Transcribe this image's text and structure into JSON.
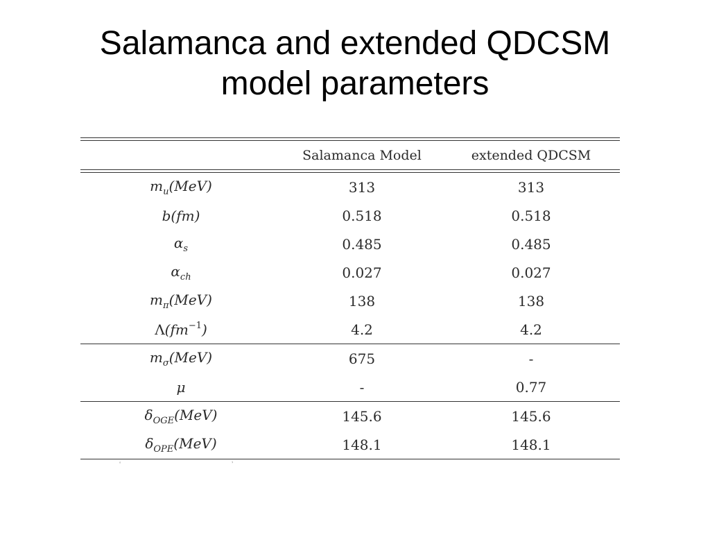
{
  "title": {
    "line1": "Salamanca and extended QDCSM",
    "line2": "model parameters"
  },
  "table": {
    "headers": [
      "",
      "Salamanca Model",
      "extended QDCSM"
    ],
    "rows": [
      {
        "param": {
          "base": "m",
          "sub": "u",
          "sup": "",
          "unit": "(MeV)"
        },
        "salamanca": "313",
        "qdcsm": "313"
      },
      {
        "param": {
          "base": "b",
          "sub": "",
          "sup": "",
          "unit": "(fm)"
        },
        "salamanca": "0.518",
        "qdcsm": "0.518"
      },
      {
        "param": {
          "base": "α",
          "sub": "s",
          "sup": "",
          "unit": ""
        },
        "salamanca": "0.485",
        "qdcsm": "0.485"
      },
      {
        "param": {
          "base": "α",
          "sub": "ch",
          "sup": "",
          "unit": ""
        },
        "salamanca": "0.027",
        "qdcsm": "0.027"
      },
      {
        "param": {
          "base": "m",
          "sub": "π",
          "sup": "",
          "unit": "(MeV)"
        },
        "salamanca": "138",
        "qdcsm": "138"
      },
      {
        "param": {
          "base": "Λ",
          "sub": "",
          "sup": "−1",
          "unit_pre": "(fm",
          "unit_post": ")"
        },
        "salamanca": "4.2",
        "qdcsm": "4.2"
      },
      {
        "param": {
          "base": "m",
          "sub": "σ",
          "sup": "",
          "unit": "(MeV)"
        },
        "salamanca": "675",
        "qdcsm": "-"
      },
      {
        "param": {
          "base": "μ",
          "sub": "",
          "sup": "",
          "unit": ""
        },
        "salamanca": "-",
        "qdcsm": "0.77"
      },
      {
        "param": {
          "base": "δ",
          "sub": "OGE",
          "sup": "",
          "unit": "(MeV)"
        },
        "salamanca": "145.6",
        "qdcsm": "145.6"
      },
      {
        "param": {
          "base": "δ",
          "sub": "OPE",
          "sup": "",
          "unit": "(MeV)"
        },
        "salamanca": "148.1",
        "qdcsm": "148.1"
      }
    ]
  }
}
